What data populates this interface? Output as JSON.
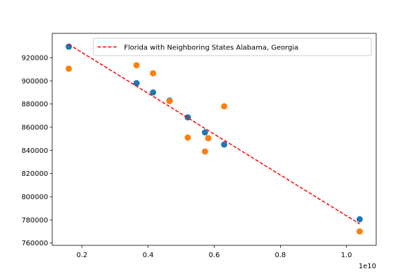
{
  "chart_data": {
    "type": "scatter",
    "title": "",
    "xlabel": "",
    "ylabel": "",
    "x_offset_label": "1e10",
    "xlim": [
      1.1,
      10.9
    ],
    "ylim": [
      758000,
      941000
    ],
    "x_ticks": [
      0.2,
      0.4,
      0.6,
      0.8,
      1.0
    ],
    "x_tick_labels": [
      "0.2",
      "0.4",
      "0.6",
      "0.8",
      "1.0"
    ],
    "y_ticks": [
      760000,
      780000,
      800000,
      820000,
      840000,
      860000,
      880000,
      900000,
      920000
    ],
    "y_tick_labels": [
      "760000",
      "780000",
      "800000",
      "820000",
      "840000",
      "860000",
      "880000",
      "900000",
      "920000"
    ],
    "grid": false,
    "legend_position": "upper-right",
    "series": [
      {
        "kind": "scatter",
        "color": "#1f77b4",
        "x": [
          1.6,
          3.65,
          4.15,
          4.65,
          5.2,
          5.72,
          5.82,
          6.3,
          10.4
        ],
        "y": [
          929500,
          898000,
          890000,
          883000,
          868500,
          855500,
          850500,
          845000,
          780500
        ]
      },
      {
        "kind": "scatter",
        "color": "#ff7f0e",
        "x": [
          1.6,
          3.65,
          4.15,
          4.65,
          5.2,
          5.72,
          5.82,
          6.3,
          10.4
        ],
        "y": [
          910500,
          913500,
          906500,
          882500,
          851000,
          839000,
          850500,
          878000,
          770000
        ]
      },
      {
        "kind": "line",
        "name": "Florida with Neighboring States Alabama, Georgia",
        "color": "#ff0000",
        "dashed": true,
        "x": [
          1.6,
          10.4
        ],
        "y": [
          931500,
          776500
        ]
      }
    ]
  }
}
